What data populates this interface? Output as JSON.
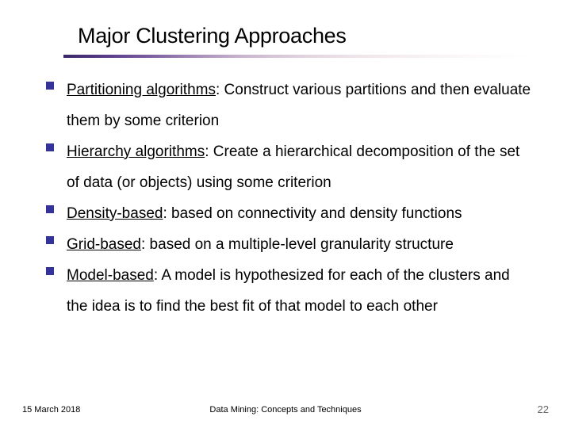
{
  "title": "Major Clustering Approaches",
  "bullets": [
    {
      "lead": "Partitioning algorithms",
      "rest": ": Construct various partitions and then evaluate them by some criterion"
    },
    {
      "lead": "Hierarchy algorithms",
      "rest": ": Create a hierarchical decomposition of the set of data (or objects) using some criterion"
    },
    {
      "lead": "Density-based",
      "rest": ": based on connectivity and density functions"
    },
    {
      "lead": "Grid-based",
      "rest": ": based on a multiple-level granularity structure"
    },
    {
      "lead": "Model-based",
      "rest": ": A model is hypothesized for each of the clusters and the idea is to find the best fit of that model to each other"
    }
  ],
  "footer": {
    "date": "15 March 2018",
    "center": "Data Mining: Concepts and Techniques",
    "page": "22"
  },
  "colors": {
    "bullet_marker": "#333399",
    "text": "#000000",
    "page_number": "#666666",
    "background": "#ffffff"
  },
  "typography": {
    "title_fontsize": 27,
    "body_fontsize": 19,
    "footer_fontsize": 11,
    "page_fontsize": 13,
    "font_family": "Verdana"
  },
  "rule_gradient": [
    "#3a2766",
    "#5d3e8a",
    "#7a5c9e",
    "#a58ab8",
    "#c9b4cf",
    "#e0d0dd",
    "#efe4ea",
    "#f8f2f5",
    "#fdfafc",
    "#ffffff"
  ]
}
